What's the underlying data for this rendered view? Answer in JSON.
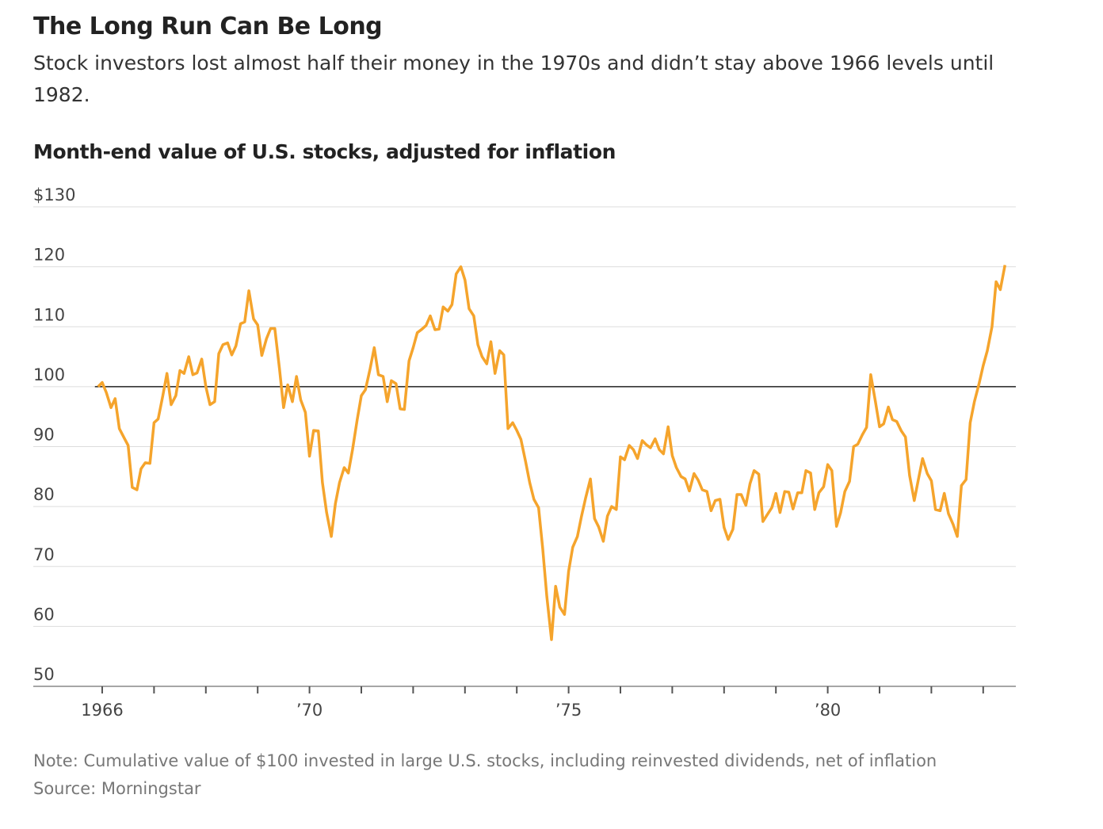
{
  "chart_data": {
    "type": "line",
    "title": "The Long Run Can Be Long",
    "subtitle": "Stock investors lost almost half their money in the 1970s and didn’t stay above 1966 levels until 1982.",
    "ylabel": "Month-end value of U.S. stocks, adjusted for inflation",
    "note": "Note: Cumulative value of $100 invested in large U.S. stocks, including reinvested dividends, net of inflation",
    "source": "Source: Morningstar",
    "xlim": [
      1964.67,
      1983.63
    ],
    "ylim": [
      50,
      130
    ],
    "yticks": [
      {
        "value": 130,
        "label": "$130"
      },
      120,
      110,
      100,
      90,
      80,
      70,
      60,
      50
    ],
    "xticks": [
      {
        "value": 1966,
        "label": "1966"
      },
      {
        "value": 1970,
        "label": "’70"
      },
      {
        "value": 1975,
        "label": "’75"
      },
      {
        "value": 1980,
        "label": "’80"
      }
    ],
    "xminor_ticks": [
      1967,
      1968,
      1969,
      1971,
      1972,
      1973,
      1974,
      1976,
      1977,
      1978,
      1979,
      1981,
      1982,
      1983
    ],
    "reference_line": 100,
    "grid": true,
    "x": [
      1965.92,
      1966.0,
      1966.08,
      1966.17,
      1966.25,
      1966.33,
      1966.42,
      1966.5,
      1966.58,
      1966.67,
      1966.75,
      1966.83,
      1966.92,
      1967.0,
      1967.08,
      1967.17,
      1967.25,
      1967.33,
      1967.42,
      1967.5,
      1967.58,
      1967.67,
      1967.75,
      1967.83,
      1967.92,
      1968.0,
      1968.08,
      1968.17,
      1968.25,
      1968.33,
      1968.42,
      1968.5,
      1968.58,
      1968.67,
      1968.75,
      1968.83,
      1968.92,
      1969.0,
      1969.08,
      1969.17,
      1969.25,
      1969.33,
      1969.42,
      1969.5,
      1969.58,
      1969.67,
      1969.75,
      1969.83,
      1969.92,
      1970.0,
      1970.08,
      1970.17,
      1970.25,
      1970.33,
      1970.42,
      1970.5,
      1970.58,
      1970.67,
      1970.75,
      1970.83,
      1970.92,
      1971.0,
      1971.08,
      1971.17,
      1971.25,
      1971.33,
      1971.42,
      1971.5,
      1971.58,
      1971.67,
      1971.75,
      1971.83,
      1971.92,
      1972.0,
      1972.08,
      1972.17,
      1972.25,
      1972.33,
      1972.42,
      1972.5,
      1972.58,
      1972.67,
      1972.75,
      1972.83,
      1972.92,
      1973.0,
      1973.08,
      1973.17,
      1973.25,
      1973.33,
      1973.42,
      1973.5,
      1973.58,
      1973.67,
      1973.75,
      1973.83,
      1973.92,
      1974.0,
      1974.08,
      1974.17,
      1974.25,
      1974.33,
      1974.42,
      1974.5,
      1974.58,
      1974.67,
      1974.75,
      1974.83,
      1974.92,
      1975.0,
      1975.08,
      1975.17,
      1975.25,
      1975.33,
      1975.42,
      1975.5,
      1975.58,
      1975.67,
      1975.75,
      1975.83,
      1975.92,
      1976.0,
      1976.08,
      1976.17,
      1976.25,
      1976.33,
      1976.42,
      1976.5,
      1976.58,
      1976.67,
      1976.75,
      1976.83,
      1976.92,
      1977.0,
      1977.08,
      1977.17,
      1977.25,
      1977.33,
      1977.42,
      1977.5,
      1977.58,
      1977.67,
      1977.75,
      1977.83,
      1977.92,
      1978.0,
      1978.08,
      1978.17,
      1978.25,
      1978.33,
      1978.42,
      1978.5,
      1978.58,
      1978.67,
      1978.75,
      1978.83,
      1978.92,
      1979.0,
      1979.08,
      1979.17,
      1979.25,
      1979.33,
      1979.42,
      1979.5,
      1979.58,
      1979.67,
      1979.75,
      1979.83,
      1979.92,
      1980.0,
      1980.08,
      1980.17,
      1980.25,
      1980.33,
      1980.42,
      1980.5,
      1980.58,
      1980.67,
      1980.75,
      1980.83,
      1980.92,
      1981.0,
      1981.08,
      1981.17,
      1981.25,
      1981.33,
      1981.42,
      1981.5,
      1981.58,
      1981.67,
      1981.75,
      1981.83,
      1981.92,
      1982.0,
      1982.08,
      1982.17,
      1982.25,
      1982.33,
      1982.42,
      1982.5,
      1982.58,
      1982.67,
      1982.75,
      1982.83,
      1982.92,
      1983.0,
      1983.08,
      1983.17,
      1983.25,
      1983.33,
      1983.42
    ],
    "series": [
      {
        "color": "#f5a42c",
        "values": [
          100,
          100.7,
          99,
          96.5,
          98,
          93,
          91.5,
          90.2,
          83.2,
          82.8,
          86.3,
          87.3,
          87.2,
          94,
          94.6,
          98.5,
          102.2,
          97,
          98.5,
          102.7,
          102.2,
          105,
          102,
          102.3,
          104.6,
          100,
          97,
          97.5,
          105.5,
          107,
          107.3,
          105.3,
          106.8,
          110.5,
          110.8,
          116,
          111.3,
          110.3,
          105.2,
          108,
          109.7,
          109.7,
          103,
          96.5,
          100.3,
          97.5,
          101.7,
          97.8,
          95.7,
          88.4,
          92.7,
          92.6,
          84,
          79,
          75,
          80.5,
          84,
          86.5,
          85.6,
          89.5,
          94.5,
          98.5,
          99.5,
          103,
          106.5,
          102,
          101.7,
          97.5,
          101,
          100.5,
          96.3,
          96.2,
          104.3,
          106.5,
          109,
          109.6,
          110.2,
          111.8,
          109.5,
          109.6,
          113.3,
          112.6,
          113.7,
          118.8,
          120,
          117.8,
          113,
          111.8,
          107,
          105,
          103.8,
          107.5,
          102.2,
          106,
          105.3,
          93,
          94,
          92.7,
          91.2,
          87.5,
          84,
          81.2,
          79.8,
          73,
          65,
          57.8,
          66.7,
          63.2,
          62,
          69.2,
          73.2,
          75,
          78.4,
          81.5,
          84.6,
          78,
          76.6,
          74.2,
          78.4,
          80,
          79.5,
          88.3,
          87.8,
          90.2,
          89.5,
          88,
          91,
          90.3,
          89.8,
          91.3,
          89.5,
          88.8,
          93.3,
          88.5,
          86.5,
          85,
          84.6,
          82.6,
          85.5,
          84.4,
          82.8,
          82.5,
          79.3,
          81,
          81.2,
          76.5,
          74.5,
          76.2,
          82,
          82,
          80.2,
          83.8,
          86,
          85.4,
          77.5,
          78.6,
          79.8,
          82.2,
          79,
          82.5,
          82.4,
          79.6,
          82.3,
          82.3,
          86,
          85.6,
          79.5,
          82.3,
          83.3,
          87,
          86,
          76.7,
          79,
          82.5,
          84.2,
          90,
          90.4,
          92,
          93.2,
          102,
          97.5,
          93.3,
          93.8,
          96.6,
          94.5,
          94.2,
          92.6,
          91.6,
          85.2,
          81,
          84.5,
          88,
          85.5,
          84.3,
          79.5,
          79.3,
          82.2,
          78.8,
          77,
          75,
          83.5,
          84.5,
          94,
          97.5,
          100.5,
          103.5,
          106,
          110,
          117.5,
          116.2,
          120.3
        ]
      }
    ]
  }
}
